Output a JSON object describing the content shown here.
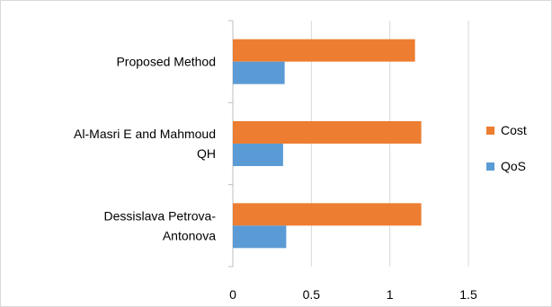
{
  "chart_data": {
    "type": "bar",
    "orientation": "horizontal",
    "categories": [
      [
        "Dessislava Petrova-",
        "Antonova"
      ],
      [
        "Al-Masri E and Mahmoud",
        "QH"
      ],
      [
        "Proposed Method"
      ]
    ],
    "series": [
      {
        "name": "QoS",
        "color": "#5b9bd5",
        "values": [
          0.34,
          0.32,
          0.33
        ]
      },
      {
        "name": "Cost",
        "color": "#ed7d31",
        "values": [
          1.2,
          1.2,
          1.16
        ]
      }
    ],
    "xlim": [
      0,
      1.5
    ],
    "xticks": [
      "0",
      "0.5",
      "1",
      "1.5"
    ],
    "grid": true,
    "legend_position": "right",
    "legend_order": [
      "Cost",
      "QoS"
    ]
  }
}
